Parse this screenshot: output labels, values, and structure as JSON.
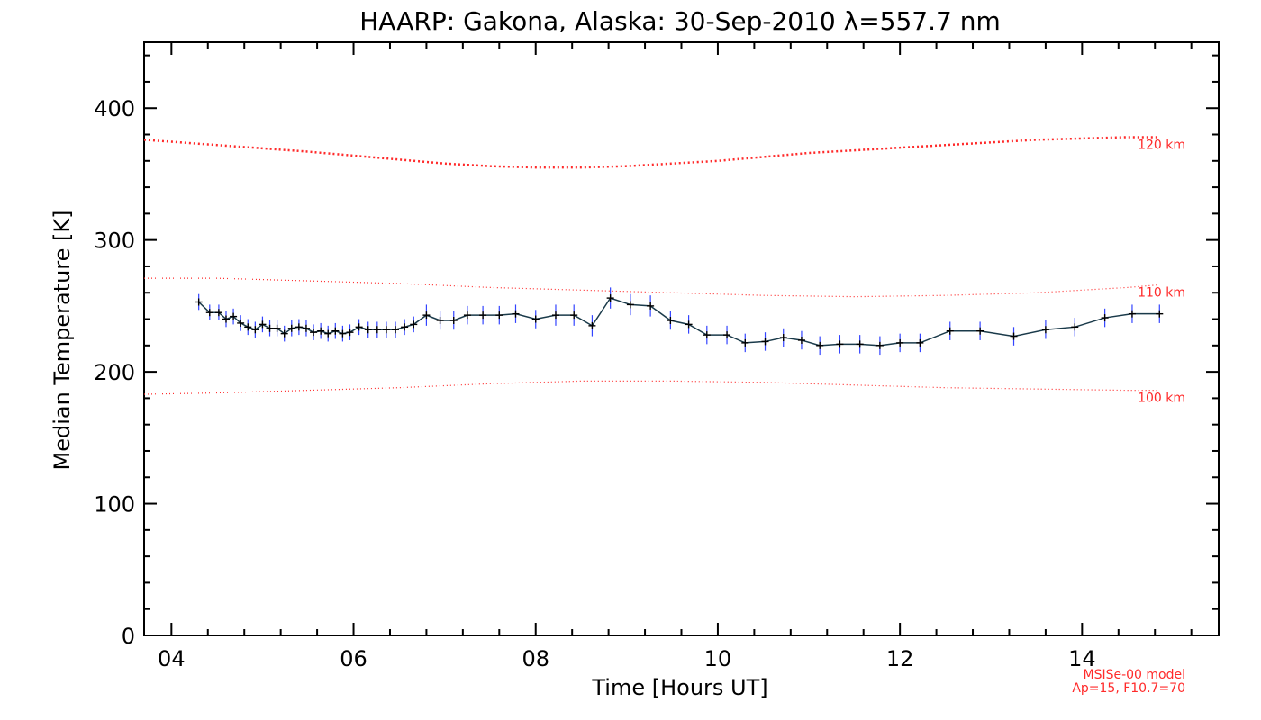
{
  "chart_data": {
    "type": "line",
    "title": "HAARP: Gakona,  Alaska: 30-Sep-2010 λ=557.7 nm",
    "xlabel": "Time [Hours UT]",
    "ylabel": "Median Temperature [K]",
    "xlim": [
      3.7,
      15.5
    ],
    "ylim": [
      0,
      450
    ],
    "x_ticks": [
      4,
      6,
      8,
      10,
      12,
      14
    ],
    "x_tick_labels": [
      "04",
      "06",
      "08",
      "10",
      "12",
      "14"
    ],
    "y_ticks": [
      0,
      100,
      200,
      300,
      400
    ],
    "y_tick_labels": [
      "0",
      "100",
      "200",
      "300",
      "400"
    ],
    "series": [
      {
        "name": "",
        "color": "#1a3a4a",
        "error_color": "#3344ff",
        "x": [
          4.3,
          4.42,
          4.52,
          4.6,
          4.68,
          4.76,
          4.84,
          4.92,
          5.0,
          5.08,
          5.16,
          5.24,
          5.32,
          5.4,
          5.48,
          5.56,
          5.64,
          5.72,
          5.8,
          5.88,
          5.96,
          6.06,
          6.16,
          6.26,
          6.36,
          6.46,
          6.56,
          6.66,
          6.8,
          6.95,
          7.1,
          7.25,
          7.42,
          7.6,
          7.78,
          8.0,
          8.22,
          8.42,
          8.62,
          8.82,
          9.04,
          9.26,
          9.48,
          9.68,
          9.88,
          10.1,
          10.3,
          10.52,
          10.72,
          10.92,
          11.12,
          11.34,
          11.56,
          11.78,
          12.0,
          12.22,
          12.55,
          12.88,
          13.25,
          13.6,
          13.92,
          14.25,
          14.55,
          14.85
        ],
        "y": [
          253,
          245,
          245,
          240,
          242,
          237,
          234,
          232,
          236,
          233,
          233,
          229,
          233,
          234,
          233,
          230,
          231,
          229,
          231,
          229,
          230,
          234,
          232,
          232,
          232,
          232,
          234,
          236,
          243,
          239,
          239,
          243,
          243,
          243,
          244,
          240,
          243,
          243,
          235,
          256,
          251,
          250,
          239,
          236,
          228,
          228,
          222,
          223,
          226,
          224,
          220,
          221,
          221,
          220,
          222,
          222,
          231,
          231,
          227,
          232,
          234,
          241,
          244,
          244
        ],
        "err": [
          6,
          6,
          6,
          6,
          6,
          6,
          6,
          6,
          6,
          6,
          6,
          6,
          6,
          6,
          6,
          6,
          6,
          6,
          6,
          6,
          6,
          6,
          6,
          6,
          6,
          6,
          6,
          6,
          8,
          7,
          7,
          7,
          7,
          7,
          7,
          7,
          8,
          8,
          8,
          8,
          8,
          8,
          7,
          7,
          7,
          7,
          7,
          7,
          7,
          7,
          7,
          7,
          7,
          7,
          7,
          7,
          7,
          7,
          7,
          7,
          7,
          7,
          7,
          7
        ]
      }
    ],
    "model_curves": [
      {
        "label": "120 km",
        "color": "#ff2a2a",
        "x": [
          3.7,
          4.5,
          5.5,
          6.5,
          7.0,
          7.5,
          8.0,
          8.5,
          9.0,
          9.5,
          10.0,
          10.5,
          11.0,
          11.5,
          12.0,
          12.5,
          13.0,
          13.5,
          14.0,
          14.5,
          14.85
        ],
        "y": [
          376,
          372,
          367,
          361,
          358,
          356,
          355,
          355,
          356,
          358,
          360,
          363,
          366,
          368,
          370,
          372,
          374,
          376,
          377,
          378,
          378
        ]
      },
      {
        "label": "110 km",
        "color": "#ff2a2a",
        "x": [
          3.7,
          4.5,
          5.5,
          6.5,
          7.5,
          8.5,
          9.5,
          10.5,
          11.5,
          12.5,
          13.5,
          14.5,
          14.85
        ],
        "y": [
          271,
          271,
          269,
          267,
          264,
          262,
          260,
          258,
          257,
          258,
          260,
          264,
          266
        ]
      },
      {
        "label": "100 km",
        "color": "#ff2a2a",
        "x": [
          3.7,
          4.5,
          5.5,
          6.5,
          7.5,
          8.5,
          9.5,
          10.5,
          11.5,
          12.5,
          13.5,
          14.5,
          14.85
        ],
        "y": [
          183,
          184,
          186,
          188,
          191,
          193,
          193,
          192,
          190,
          188,
          187,
          186,
          186
        ]
      }
    ],
    "model_note": [
      "MSISe-00 model",
      "Ap=15, F10.7=70"
    ]
  }
}
